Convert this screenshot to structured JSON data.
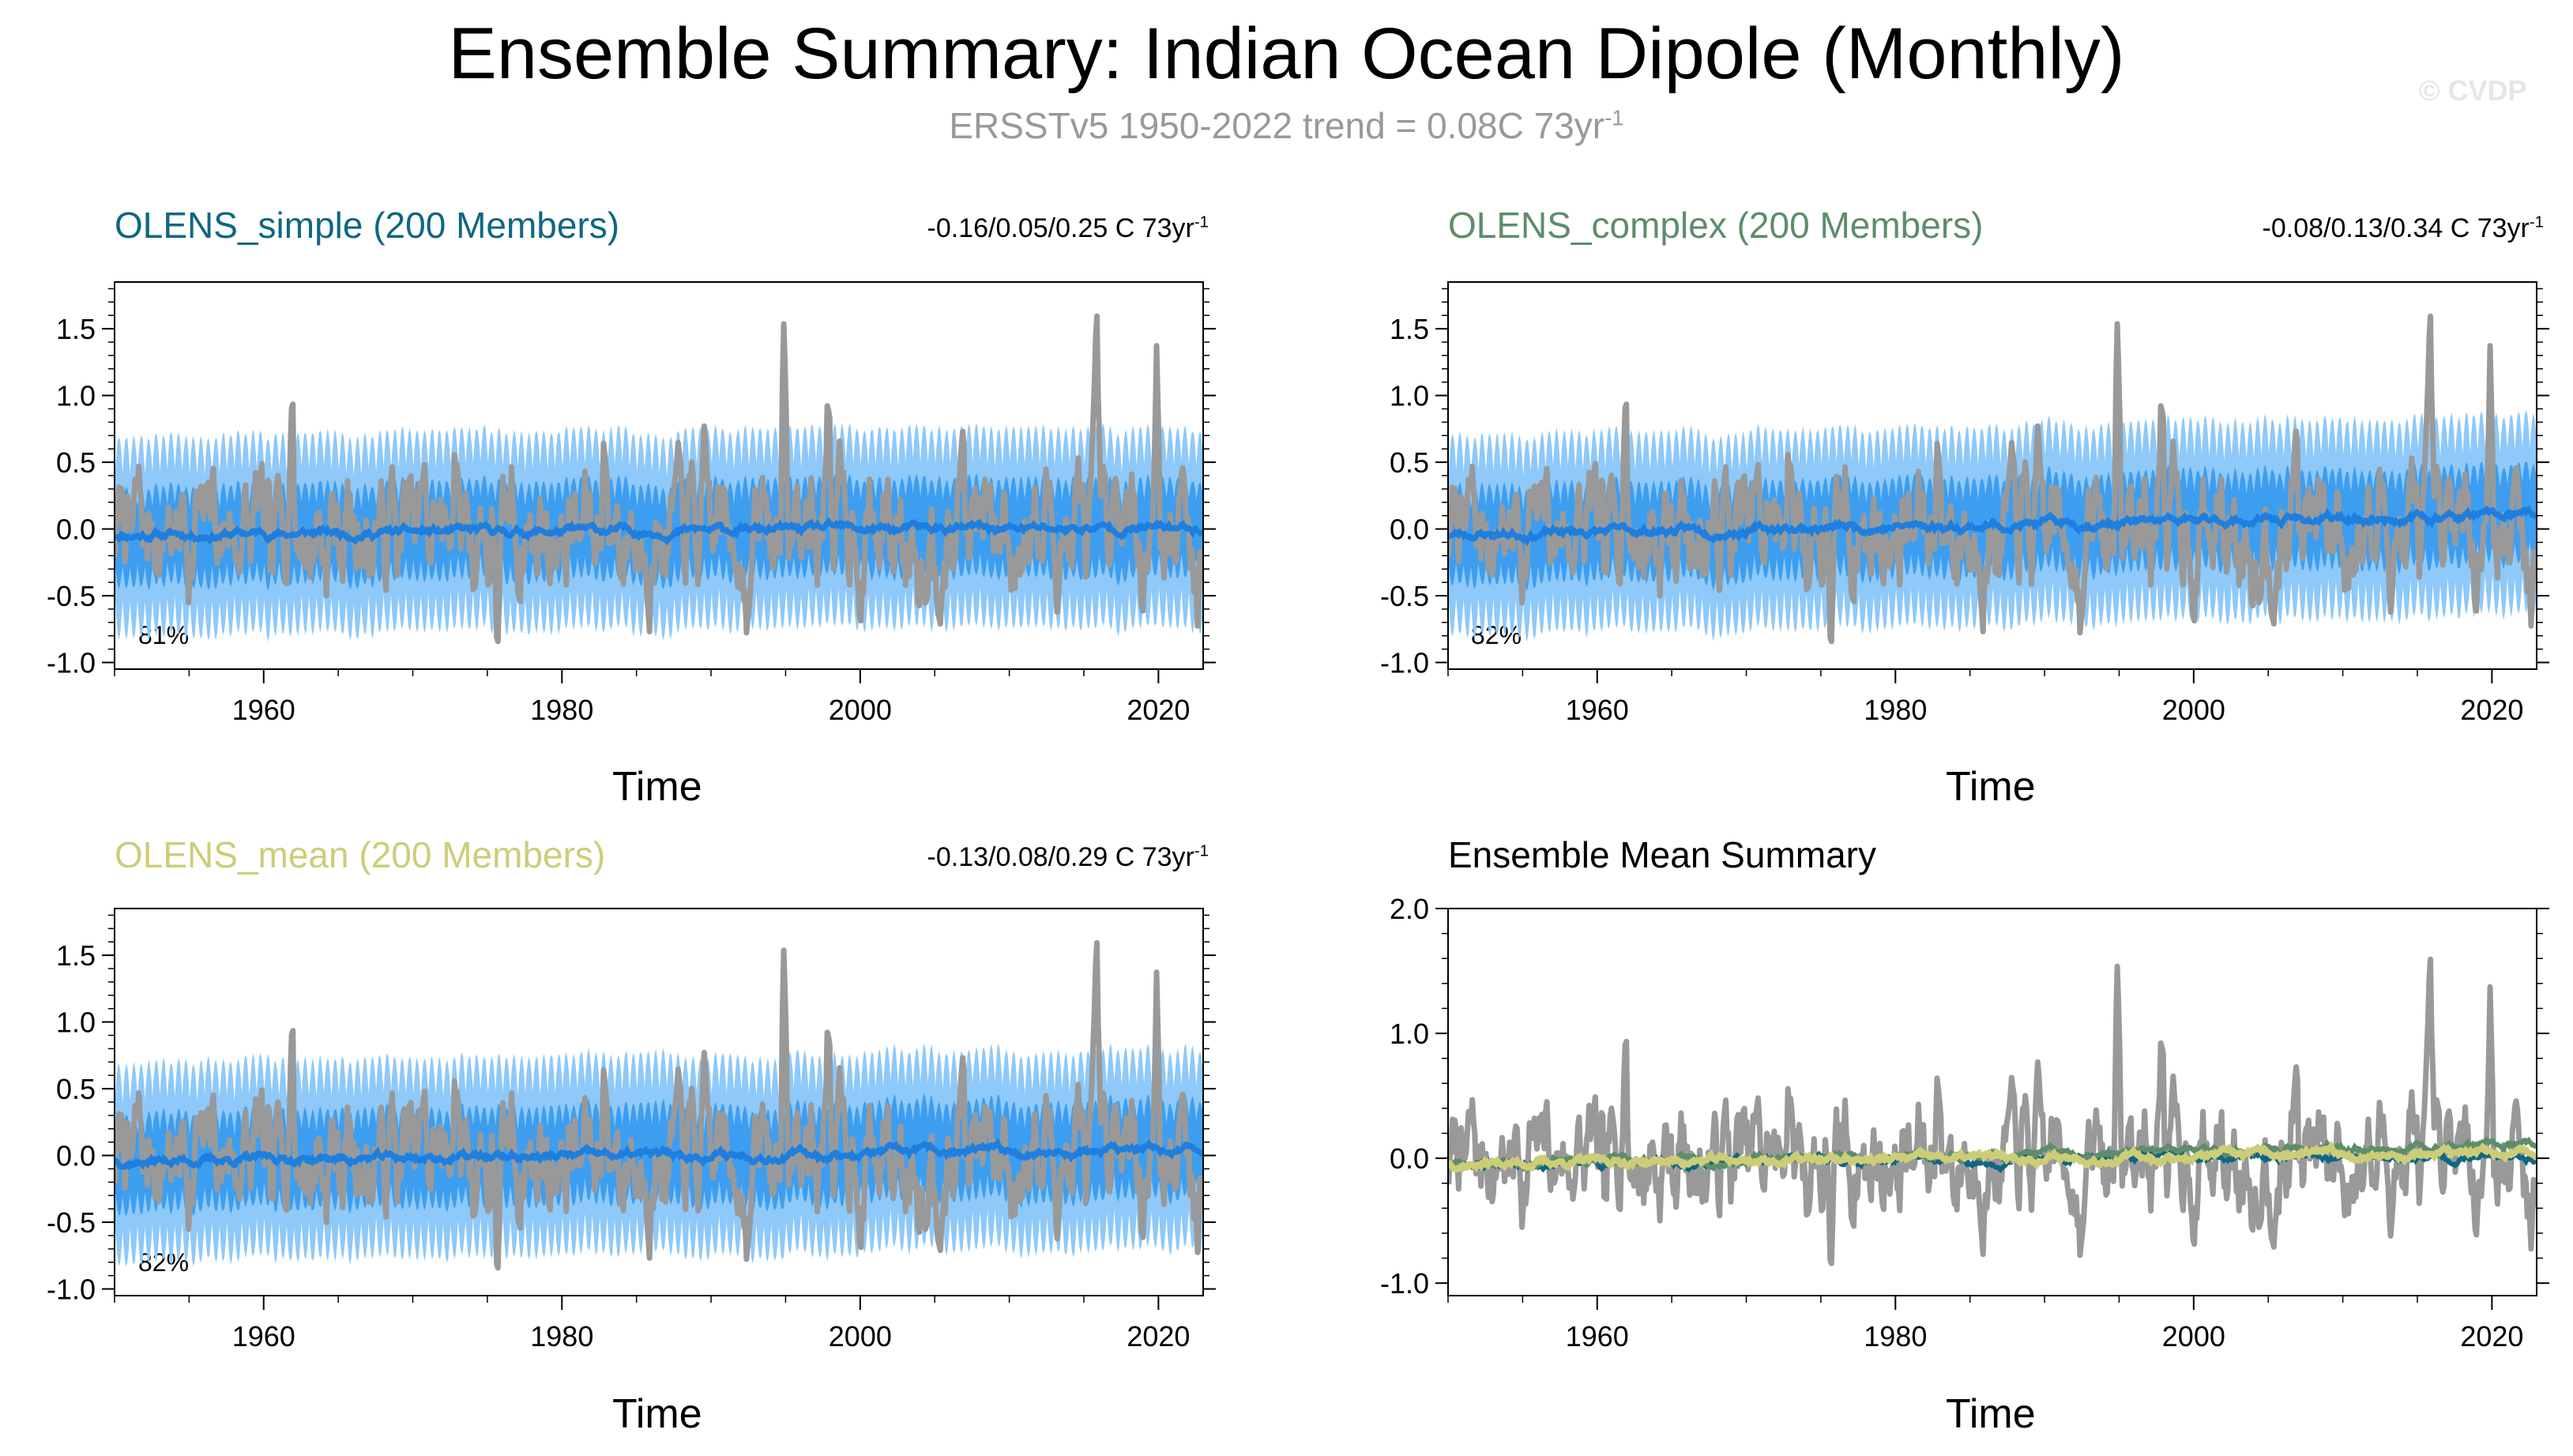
{
  "title": "Ensemble Summary: Indian Ocean Dipole (Monthly)",
  "subtitle_main": "ERSSTv5 1950-2022 trend = 0.08C 73yr",
  "subtitle_exp": "-1",
  "copyright": "© CVDP",
  "colors": {
    "observations": "#999999",
    "outer_spread": "#8ec9f9",
    "inner_spread": "#3d9ef0",
    "ensemble_mean_blue": "#1e7fdf",
    "olens_simple": "#0f6782",
    "olens_complex": "#5d8d6a",
    "olens_mean": "#cdcd78"
  },
  "chart_data": [
    {
      "type": "line",
      "panel": "olens_simple",
      "title": "OLENS_simple (200 Members)",
      "trend_text": "-0.16/0.05/0.25 C 73yr",
      "trend_exp": "-1",
      "percent_label": "81%",
      "xlabel": "Time",
      "xlim": [
        1950,
        2022
      ],
      "ylim": [
        -1.05,
        1.85
      ],
      "xticks": [
        "1960",
        "1980",
        "2000",
        "2020"
      ],
      "yticks": [
        "1.5",
        "1.0",
        "0.5",
        "0.0",
        "-0.5",
        "-1.0"
      ],
      "series": [
        "observations",
        "ensemble spread",
        "ensemble mean"
      ]
    },
    {
      "type": "line",
      "panel": "olens_complex",
      "title": "OLENS_complex (200 Members)",
      "trend_text": "-0.08/0.13/0.34 C 73yr",
      "trend_exp": "-1",
      "percent_label": "82%",
      "xlabel": "Time",
      "xlim": [
        1950,
        2022
      ],
      "ylim": [
        -1.05,
        1.85
      ],
      "xticks": [
        "1960",
        "1980",
        "2000",
        "2020"
      ],
      "yticks": [
        "1.5",
        "1.0",
        "0.5",
        "0.0",
        "-0.5",
        "-1.0"
      ],
      "series": [
        "observations",
        "ensemble spread",
        "ensemble mean"
      ]
    },
    {
      "type": "line",
      "panel": "olens_mean",
      "title": "OLENS_mean (200 Members)",
      "trend_text": "-0.13/0.08/0.29 C 73yr",
      "trend_exp": "-1",
      "percent_label": "82%",
      "xlabel": "Time",
      "xlim": [
        1950,
        2022
      ],
      "ylim": [
        -1.05,
        1.85
      ],
      "xticks": [
        "1960",
        "1980",
        "2000",
        "2020"
      ],
      "yticks": [
        "1.5",
        "1.0",
        "0.5",
        "0.0",
        "-0.5",
        "-1.0"
      ],
      "series": [
        "observations",
        "ensemble spread",
        "ensemble mean"
      ]
    },
    {
      "type": "line",
      "panel": "ensemble_mean_summary",
      "title": "Ensemble Mean Summary",
      "xlabel": "Time",
      "xlim": [
        1950,
        2022
      ],
      "ylim": [
        -1.1,
        2.0
      ],
      "xticks": [
        "1960",
        "1980",
        "2000",
        "2020"
      ],
      "yticks": [
        "2.0",
        "1.0",
        "0.0",
        "-1.0"
      ],
      "series": [
        "observations",
        "OLENS_simple",
        "OLENS_complex",
        "OLENS_mean"
      ]
    }
  ]
}
